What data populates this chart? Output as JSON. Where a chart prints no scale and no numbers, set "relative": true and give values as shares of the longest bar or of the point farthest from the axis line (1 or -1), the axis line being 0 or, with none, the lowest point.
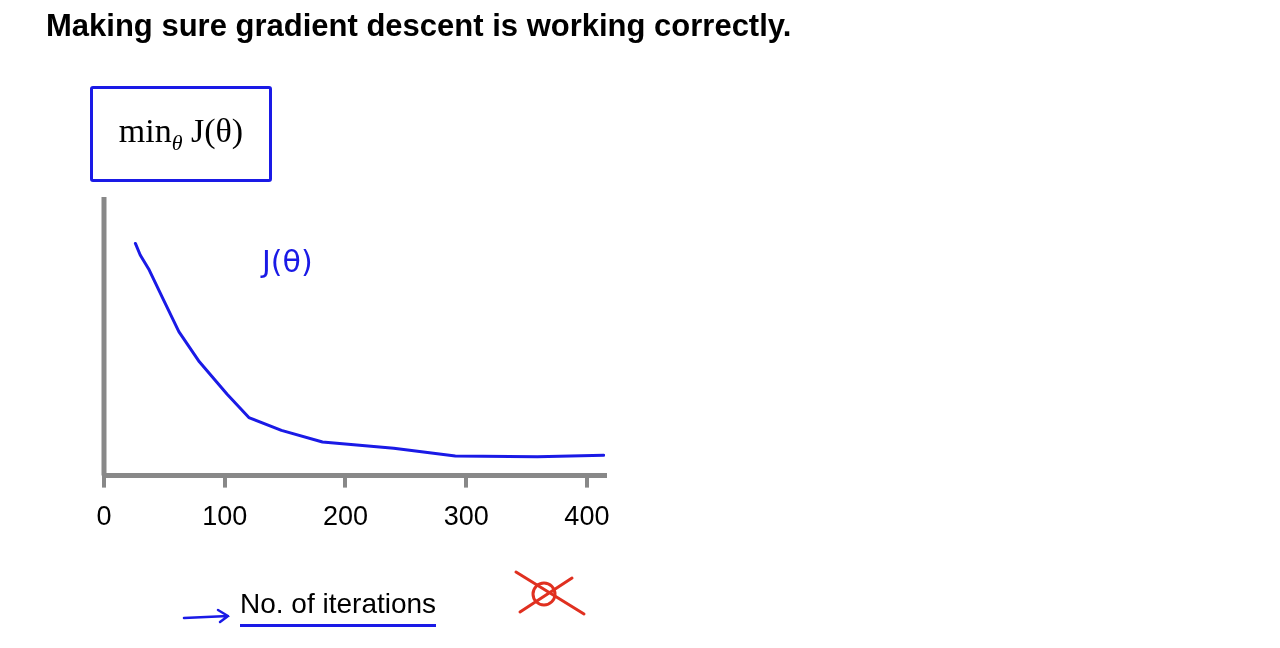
{
  "chart_data": {
    "type": "line",
    "title": "Making sure gradient descent is working correctly.",
    "xlabel": "No. of iterations",
    "annotations": [
      "min$_{θ}$ J(θ)"
    ],
    "relative": true,
    "xlim": [
      0,
      415
    ],
    "xticks": [
      0,
      100,
      200,
      300,
      400
    ],
    "grid": false,
    "legend": false,
    "marker": "none",
    "line_style": "solid",
    "series": [
      {
        "name": "J(θ)",
        "color": "#1a1ae6",
        "x": [
          26,
          30,
          37,
          49,
          62,
          79,
          102,
          120,
          147,
          181,
          240,
          291,
          359,
          414
        ],
        "values": [
          1.0,
          0.95,
          0.89,
          0.76,
          0.62,
          0.49,
          0.35,
          0.25,
          0.195,
          0.145,
          0.118,
          0.084,
          0.081,
          0.088
        ]
      }
    ]
  }
}
